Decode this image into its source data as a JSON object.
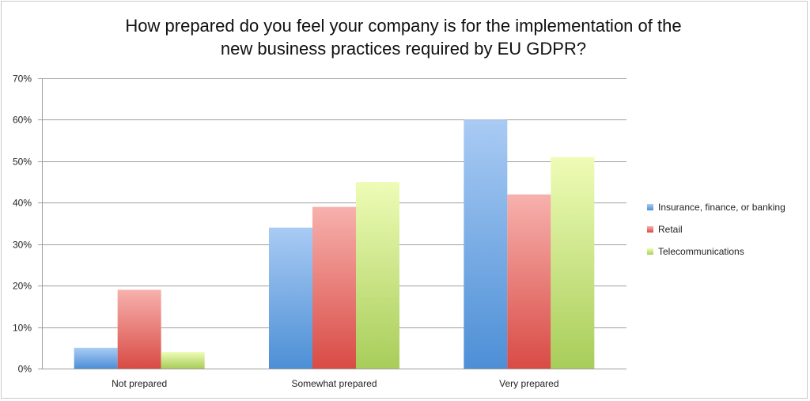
{
  "chart_data": {
    "type": "bar",
    "title": "How prepared do you feel your company is for the implementation of the new business practices required by EU GDPR?",
    "title_lines": [
      "How prepared do you feel your company is for the implementation of the",
      "new business practices required by EU GDPR?"
    ],
    "categories": [
      "Not prepared",
      "Somewhat prepared",
      "Very prepared"
    ],
    "series": [
      {
        "name": "Insurance, finance, or banking",
        "values": [
          5,
          34,
          60
        ],
        "color_top": "#a9cbf4",
        "color_bottom": "#4d8fd6"
      },
      {
        "name": "Retail",
        "values": [
          19,
          39,
          42
        ],
        "color_top": "#f7b1ad",
        "color_bottom": "#d94b45"
      },
      {
        "name": "Telecommunications",
        "values": [
          4,
          45,
          51
        ],
        "color_top": "#eefcb6",
        "color_bottom": "#a8cd5a"
      }
    ],
    "ylim": [
      0,
      70
    ],
    "yticks": [
      "0%",
      "10%",
      "20%",
      "30%",
      "40%",
      "50%",
      "60%",
      "70%"
    ],
    "grid": true,
    "legend_position": "right"
  }
}
